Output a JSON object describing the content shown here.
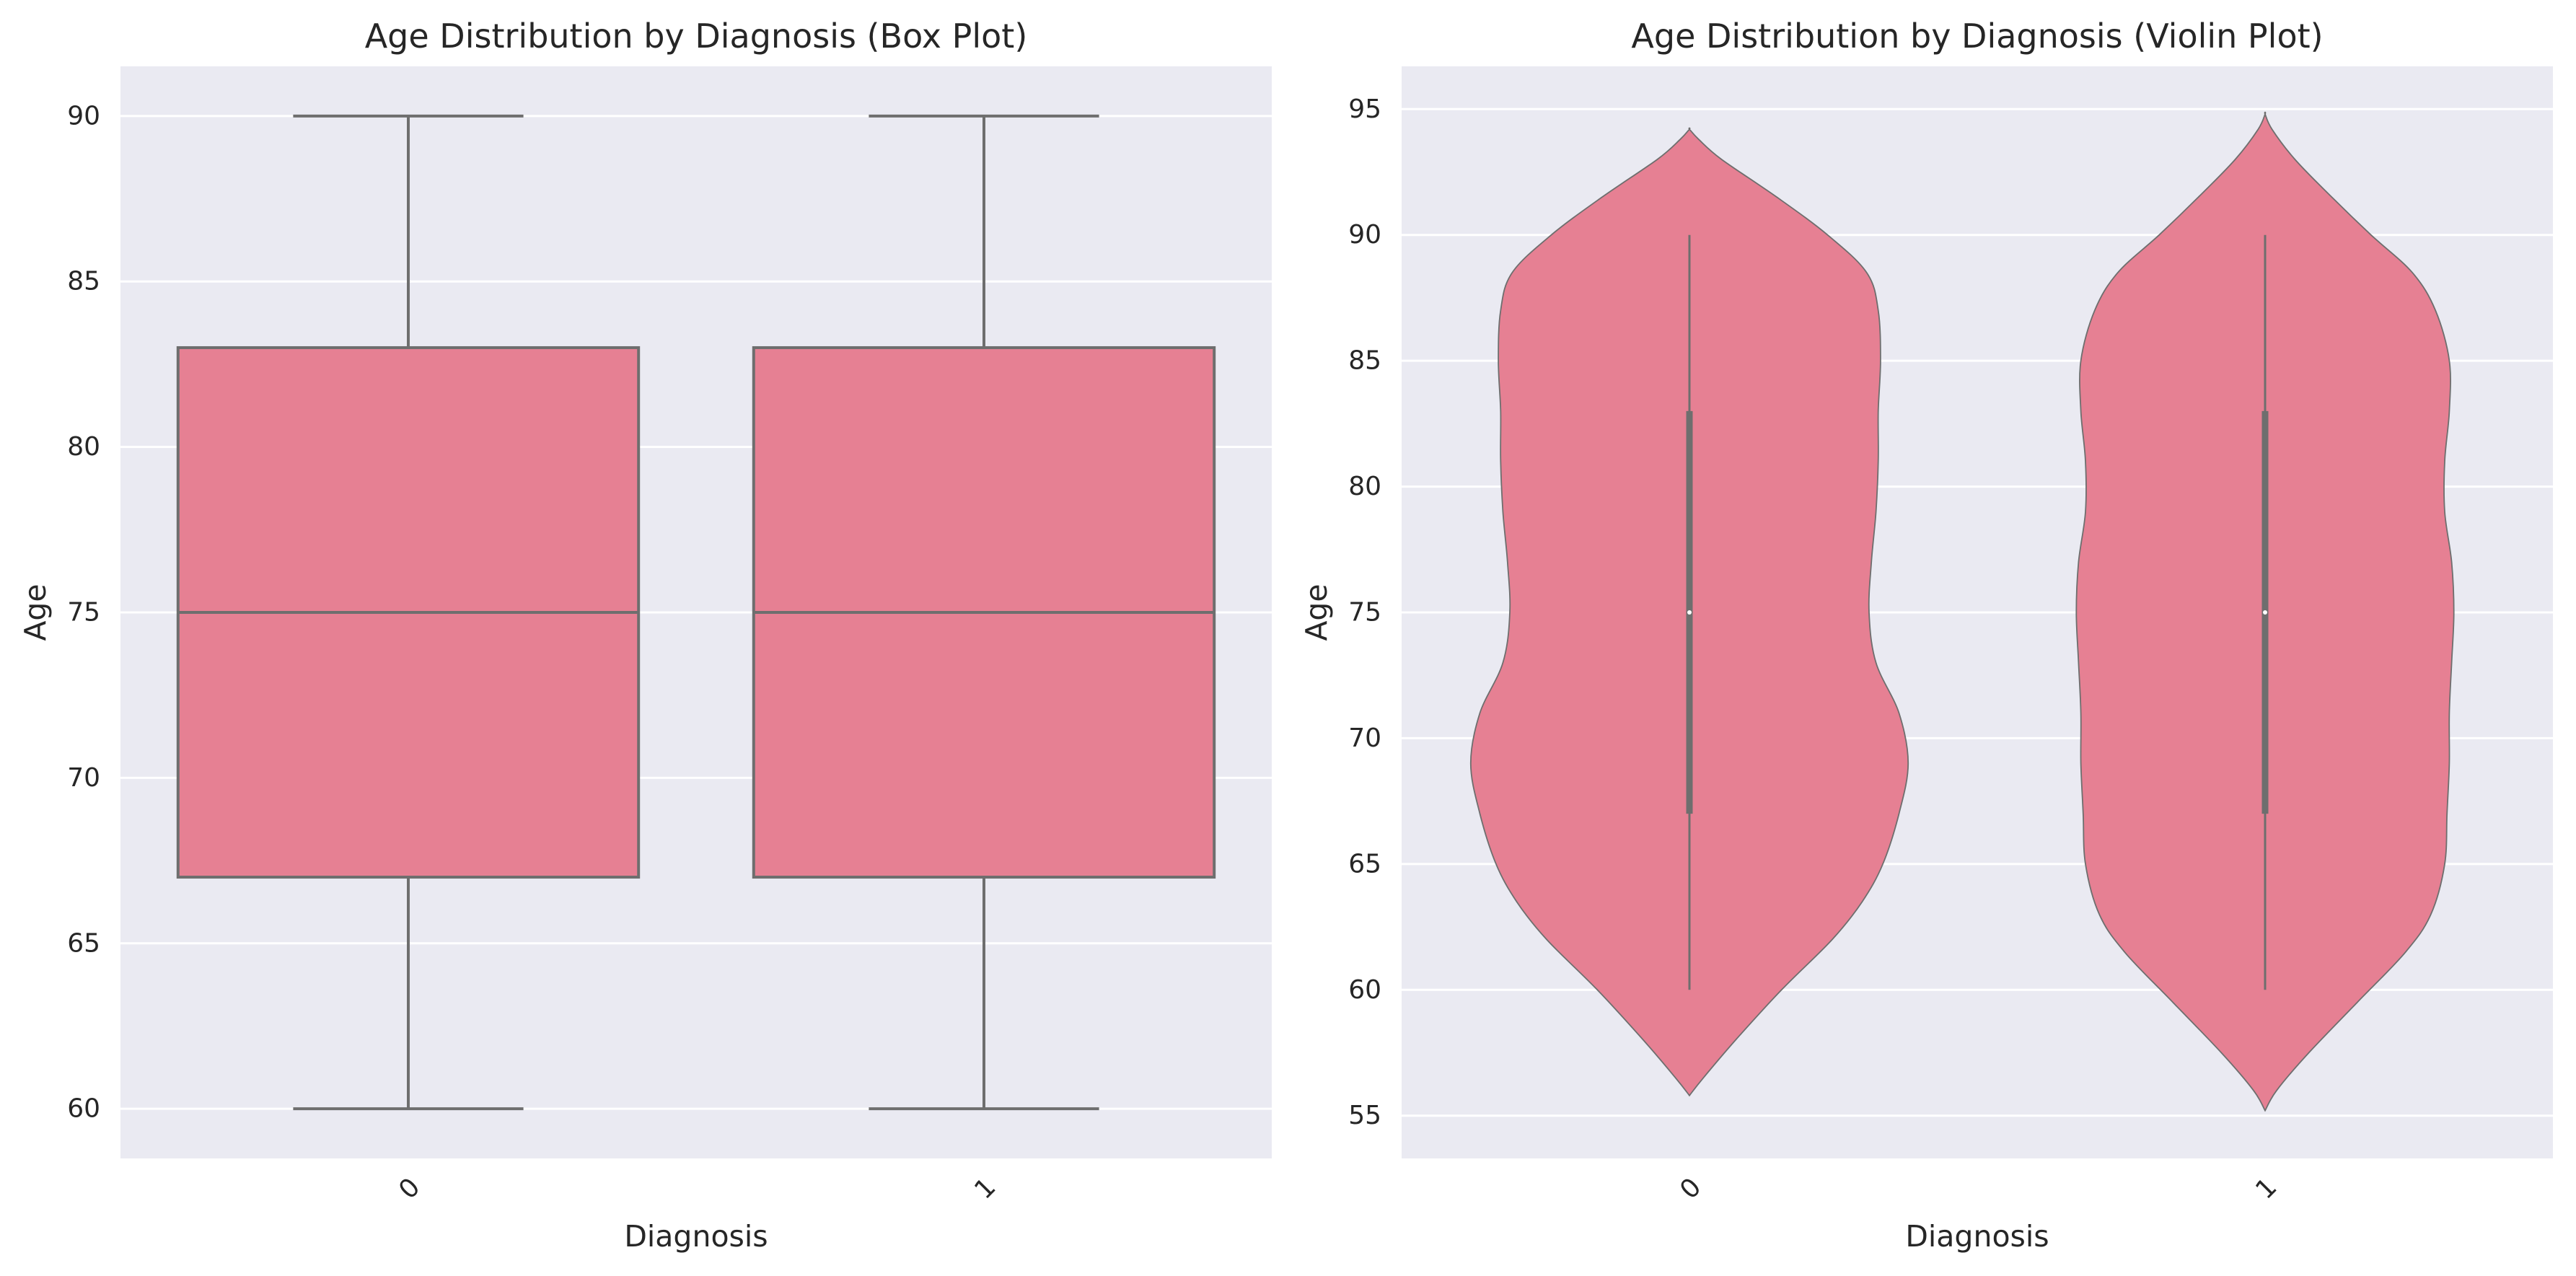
{
  "chart_data": [
    {
      "type": "box",
      "title": "Age Distribution by Diagnosis (Box Plot)",
      "xlabel": "Diagnosis",
      "ylabel": "Age",
      "categories": [
        "0",
        "1"
      ],
      "ylim": [
        58.5,
        91.5
      ],
      "yticks": [
        60,
        65,
        70,
        75,
        80,
        85,
        90
      ],
      "grid": true,
      "fill_color": "#e68093",
      "line_color": "#6e6e6e",
      "background": "#eaeaf2",
      "boxes": [
        {
          "category": "0",
          "whisker_low": 60,
          "q1": 67,
          "median": 75,
          "q3": 83,
          "whisker_high": 90
        },
        {
          "category": "1",
          "whisker_low": 60,
          "q1": 67,
          "median": 75,
          "q3": 83,
          "whisker_high": 90
        }
      ]
    },
    {
      "type": "violin",
      "title": "Age Distribution by Diagnosis (Violin Plot)",
      "xlabel": "Diagnosis",
      "ylabel": "Age",
      "categories": [
        "0",
        "1"
      ],
      "ylim": [
        53.3,
        96.7
      ],
      "yticks": [
        55,
        60,
        65,
        70,
        75,
        80,
        85,
        90,
        95
      ],
      "grid": true,
      "fill_color": "#e68093",
      "line_color": "#6e6e6e",
      "background": "#eaeaf2",
      "violins": [
        {
          "category": "0",
          "min": 60,
          "q1": 67,
          "median": 75,
          "q3": 83,
          "max": 90,
          "extent": [
            55.8,
            94.2
          ],
          "density_profile": [
            [
              55.8,
              0.0
            ],
            [
              56.5,
              0.06
            ],
            [
              58.0,
              0.2
            ],
            [
              60.0,
              0.4
            ],
            [
              62.0,
              0.62
            ],
            [
              63.5,
              0.75
            ],
            [
              65.0,
              0.84
            ],
            [
              67.0,
              0.91
            ],
            [
              69.0,
              0.95
            ],
            [
              71.0,
              0.91
            ],
            [
              73.0,
              0.81
            ],
            [
              75.0,
              0.78
            ],
            [
              77.0,
              0.79
            ],
            [
              79.0,
              0.81
            ],
            [
              81.0,
              0.82
            ],
            [
              83.0,
              0.82
            ],
            [
              85.0,
              0.83
            ],
            [
              87.0,
              0.82
            ],
            [
              88.5,
              0.77
            ],
            [
              90.0,
              0.6
            ],
            [
              91.5,
              0.38
            ],
            [
              93.0,
              0.14
            ],
            [
              93.8,
              0.04
            ],
            [
              94.2,
              0.0
            ]
          ]
        },
        {
          "category": "1",
          "min": 60,
          "q1": 67,
          "median": 75,
          "q3": 83,
          "max": 90,
          "extent": [
            55.2,
            94.8
          ],
          "density_profile": [
            [
              55.2,
              0.0
            ],
            [
              56.0,
              0.05
            ],
            [
              57.5,
              0.19
            ],
            [
              59.5,
              0.4
            ],
            [
              61.5,
              0.61
            ],
            [
              63.0,
              0.72
            ],
            [
              65.0,
              0.78
            ],
            [
              67.0,
              0.79
            ],
            [
              69.0,
              0.8
            ],
            [
              71.0,
              0.8
            ],
            [
              73.0,
              0.81
            ],
            [
              75.0,
              0.82
            ],
            [
              77.0,
              0.81
            ],
            [
              79.0,
              0.78
            ],
            [
              81.0,
              0.78
            ],
            [
              83.0,
              0.8
            ],
            [
              85.0,
              0.8
            ],
            [
              87.0,
              0.74
            ],
            [
              88.5,
              0.64
            ],
            [
              90.0,
              0.46
            ],
            [
              91.5,
              0.29
            ],
            [
              93.0,
              0.13
            ],
            [
              94.2,
              0.03
            ],
            [
              94.8,
              0.0
            ]
          ]
        }
      ]
    }
  ]
}
